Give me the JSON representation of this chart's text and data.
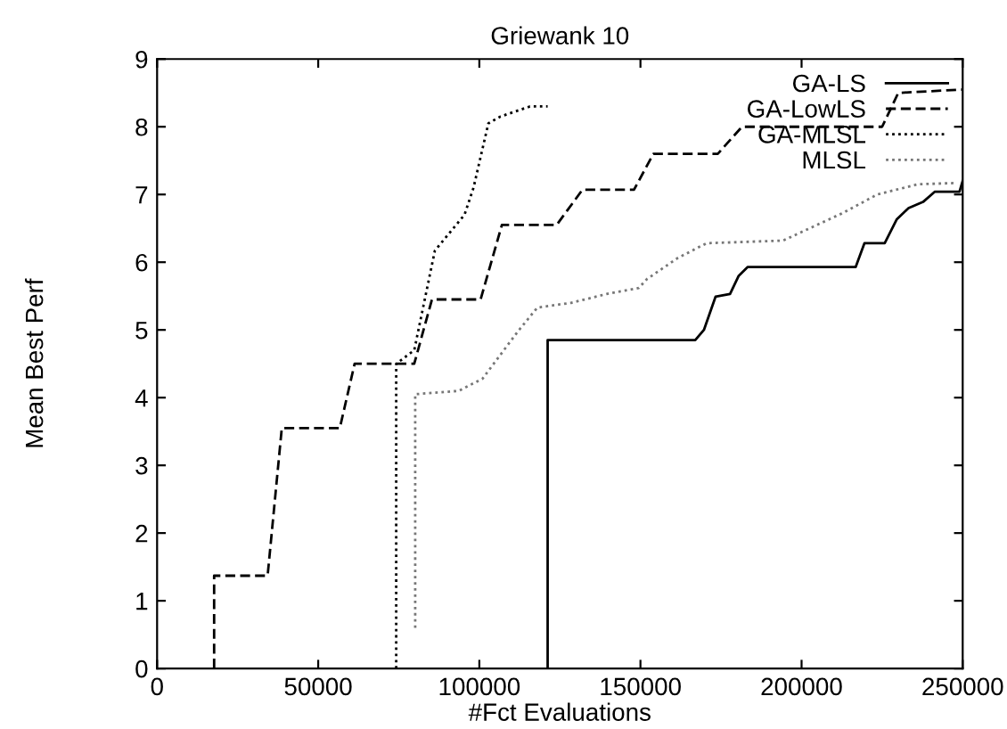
{
  "chart_data": {
    "type": "line",
    "title": "Griewank 10",
    "xlabel": "#Fct Evaluations",
    "ylabel": "Mean Best Perf",
    "xlim": [
      0,
      250000
    ],
    "ylim": [
      0,
      9
    ],
    "xticks": [
      0,
      50000,
      100000,
      150000,
      200000,
      250000
    ],
    "yticks": [
      0,
      1,
      2,
      3,
      4,
      5,
      6,
      7,
      8,
      9
    ],
    "grid": false,
    "legend": "top right",
    "series": [
      {
        "name": "GA-LS",
        "color": "#000000",
        "line_style": "solid",
        "x": [
          121200,
          121200,
          167000,
          169700,
          173300,
          177800,
          180500,
          183300,
          216800,
          219500,
          225800,
          229500,
          233200,
          237700,
          241300,
          249000,
          250000
        ],
        "values": [
          0,
          4.85,
          4.85,
          5.0,
          5.49,
          5.53,
          5.8,
          5.93,
          5.93,
          6.28,
          6.28,
          6.63,
          6.8,
          6.89,
          7.04,
          7.04,
          7.2
        ]
      },
      {
        "name": "GA-LowLS",
        "color": "#000000",
        "line_style": "dashed",
        "x": [
          17700,
          17700,
          34300,
          38700,
          56700,
          61300,
          79800,
          85300,
          100400,
          107000,
          124000,
          132000,
          148000,
          154000,
          174000,
          181500,
          225000,
          230000,
          250000
        ],
        "values": [
          0,
          1.37,
          1.37,
          3.55,
          3.55,
          4.5,
          4.5,
          5.45,
          5.45,
          6.55,
          6.55,
          7.07,
          7.07,
          7.6,
          7.6,
          8.0,
          8.0,
          8.5,
          8.55
        ]
      },
      {
        "name": "GA-MLSL",
        "color": "#000000",
        "line_style": "dotted",
        "x": [
          74200,
          74200,
          79800,
          86200,
          95400,
          98200,
          102800,
          106500,
          115700,
          121200
        ],
        "values": [
          0,
          4.5,
          4.7,
          6.17,
          6.7,
          7.1,
          8.05,
          8.15,
          8.3,
          8.3
        ]
      },
      {
        "name": "MLSL",
        "color": "#777777",
        "line_style": "dotted",
        "x": [
          80100,
          80100,
          93600,
          101000,
          112000,
          118000,
          128500,
          139500,
          149500,
          152000,
          161500,
          170500,
          194300,
          212500,
          223500,
          236000,
          248000
        ],
        "values": [
          0.6,
          4.05,
          4.1,
          4.28,
          4.98,
          5.33,
          5.4,
          5.53,
          5.62,
          5.75,
          6.06,
          6.28,
          6.32,
          6.72,
          7.0,
          7.15,
          7.17
        ]
      }
    ]
  }
}
